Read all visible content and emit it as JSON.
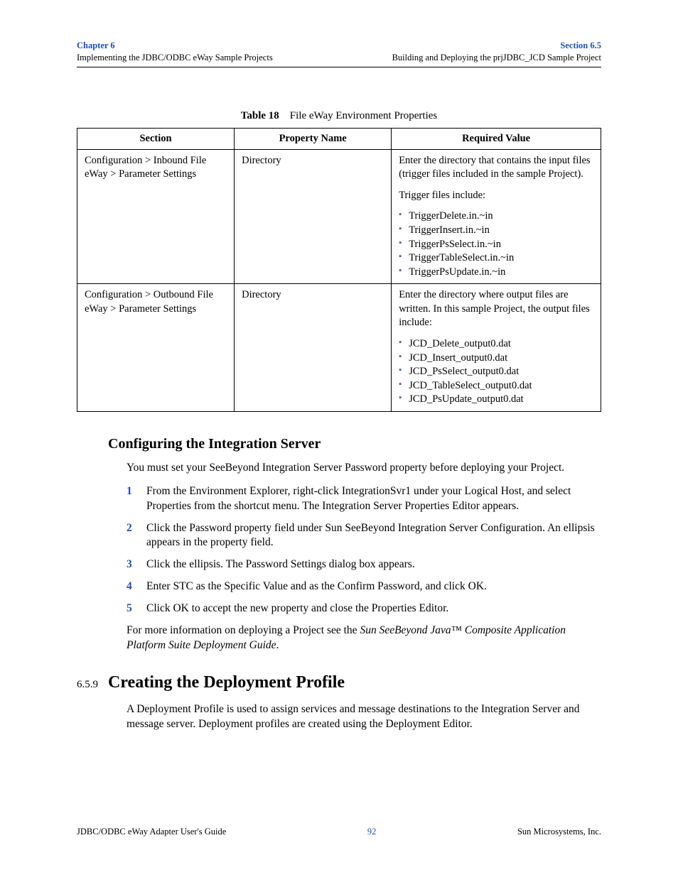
{
  "header": {
    "chapter_label": "Chapter 6",
    "chapter_sub": "Implementing the JDBC/ODBC eWay Sample Projects",
    "section_label": "Section 6.5",
    "section_sub": "Building and Deploying the prjJDBC_JCD Sample Project"
  },
  "table": {
    "caption_num": "Table 18",
    "caption_text": "File eWay Environment Properties",
    "columns": [
      "Section",
      "Property Name",
      "Required Value"
    ],
    "rows": [
      {
        "section": "Configuration > Inbound File eWay > Parameter Settings",
        "property": "Directory",
        "value_intro": "Enter the directory that contains the input files (trigger files included in the sample Project).",
        "value_sub": "Trigger files include:",
        "items": [
          "TriggerDelete.in.~in",
          "TriggerInsert.in.~in",
          "TriggerPsSelect.in.~in",
          "TriggerTableSelect.in.~in",
          "TriggerPsUpdate.in.~in"
        ]
      },
      {
        "section": "Configuration > Outbound File eWay > Parameter Settings",
        "property": "Directory",
        "value_intro": "Enter the directory where output files are written. In this sample Project, the output files include:",
        "value_sub": "",
        "items": [
          "JCD_Delete_output0.dat",
          "JCD_Insert_output0.dat",
          "JCD_PsSelect_output0.dat",
          "JCD_TableSelect_output0.dat",
          "JCD_PsUpdate_output0.dat"
        ]
      }
    ]
  },
  "sec1": {
    "title": "Configuring the Integration Server",
    "intro": "You must set your SeeBeyond Integration Server Password property before deploying your Project.",
    "steps": {
      "s1a": "From the Environment Explorer, right-click ",
      "s1b": "IntegrationSvr1",
      "s1c": " under your ",
      "s1d": "Logical Host",
      "s1e": ", and select ",
      "s1f": "Properties",
      "s1g": " from the shortcut menu. The Integration Server Properties Editor appears.",
      "s2a": "Click the ",
      "s2b": "Password",
      "s2c": " property field under ",
      "s2d": "Sun SeeBeyond Integration Server Configuration",
      "s2e": ". An ellipsis appears in the property field.",
      "s3a": "Click the ellipsis. The ",
      "s3b": "Password Settings",
      "s3c": " dialog box appears.",
      "s4a": "Enter ",
      "s4b": "STC",
      "s4c": " as the ",
      "s4d": "Specific Value",
      "s4e": " and as the ",
      "s4f": "Confirm Password",
      "s4g": ", and click ",
      "s4h": "OK",
      "s4i": ".",
      "s5a": "Click ",
      "s5b": "OK",
      "s5c": " to accept the new property and close the Properties Editor."
    },
    "outro_a": "For more information on deploying a Project see the ",
    "outro_b": "Sun SeeBeyond Java™ Composite Application Platform Suite Deployment Guide",
    "outro_c": "."
  },
  "sec2": {
    "num": "6.5.9",
    "title": "Creating the Deployment Profile",
    "body": "A Deployment Profile is used to assign services and message destinations to the Integration Server and message server. Deployment profiles are created using the Deployment Editor."
  },
  "footer": {
    "left": "JDBC/ODBC eWay Adapter User's Guide",
    "page": "92",
    "right": "Sun Microsystems, Inc."
  },
  "colors": {
    "link_blue": "#1a4fc7",
    "bullet_blue": "#3b5ba5"
  }
}
